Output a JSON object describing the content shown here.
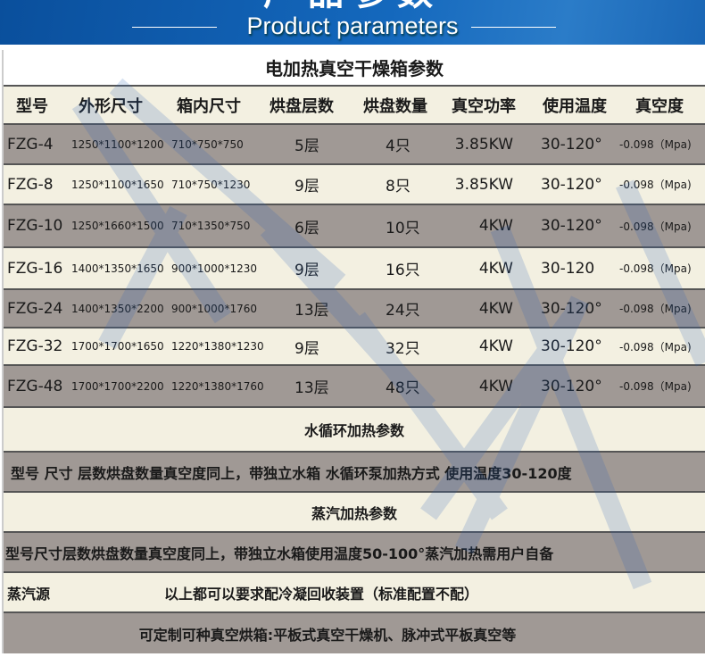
{
  "banner": {
    "title_cn": "产品参数",
    "title_en": "Product parameters"
  },
  "electric": {
    "title": "电加热真空干燥箱参数",
    "headers": [
      "型号",
      "外形尺寸",
      "箱内尺寸",
      "烘盘层数",
      "烘盘数量",
      "真空功率",
      "使用温度",
      "真空度"
    ],
    "rows": [
      [
        "FZG-4",
        "1250*1100*1200",
        "710*750*750",
        "5层",
        "4只",
        "3.85KW",
        "30-120°",
        "-0.098（Mpa)"
      ],
      [
        "FZG-8",
        "1250*1100*1650",
        "710*750*1230",
        "9层",
        "8只",
        "3.85KW",
        "30-120°",
        "-0.098（Mpa)"
      ],
      [
        "FZG-10",
        "1250*1660*1500",
        "710*1350*750",
        "6层",
        "10只",
        "4KW",
        "30-120°",
        "-0.098（Mpa)"
      ],
      [
        "FZG-16",
        "1400*1350*1650",
        "900*1000*1230",
        "9层",
        "16只",
        "4KW",
        "30-120",
        "-0.098（Mpa)"
      ],
      [
        "FZG-24",
        "1400*1350*2200",
        "900*1000*1760",
        "13层",
        "24只",
        "4KW",
        "30-120°",
        "-0.098（Mpa)"
      ],
      [
        "FZG-32",
        "1700*1700*1650",
        "1220*1380*1230",
        "9层",
        "32只",
        "4KW",
        "30-120°",
        "-0.098（Mpa)"
      ],
      [
        "FZG-48",
        "1700*1700*2200",
        "1220*1380*1760",
        "13层",
        "48只",
        "4KW",
        "30-120°",
        "-0.098（Mpa)"
      ]
    ]
  },
  "water": {
    "title": "水循环加热参数",
    "note": "型号 尺寸 层数烘盘数量真空度同上，带独立水箱 水循环泵加热方式 使用温度30-120度"
  },
  "steam": {
    "title": "蒸汽加热参数",
    "note": "型号尺寸层数烘盘数量真空度同上，带独立水箱使用温度50-100°蒸汽加热需用户自备",
    "source_label": "蒸汽源",
    "source_note": "以上都可以要求配冷凝回收装置（标准配置不配）"
  },
  "footer": {
    "note": "可定制可种真空烘箱:平板式真空干燥机、脉冲式平板真空等"
  },
  "colors": {
    "banner": "#1468bd",
    "gray_row": "#a09995",
    "cream_row": "#f3f0e1"
  }
}
